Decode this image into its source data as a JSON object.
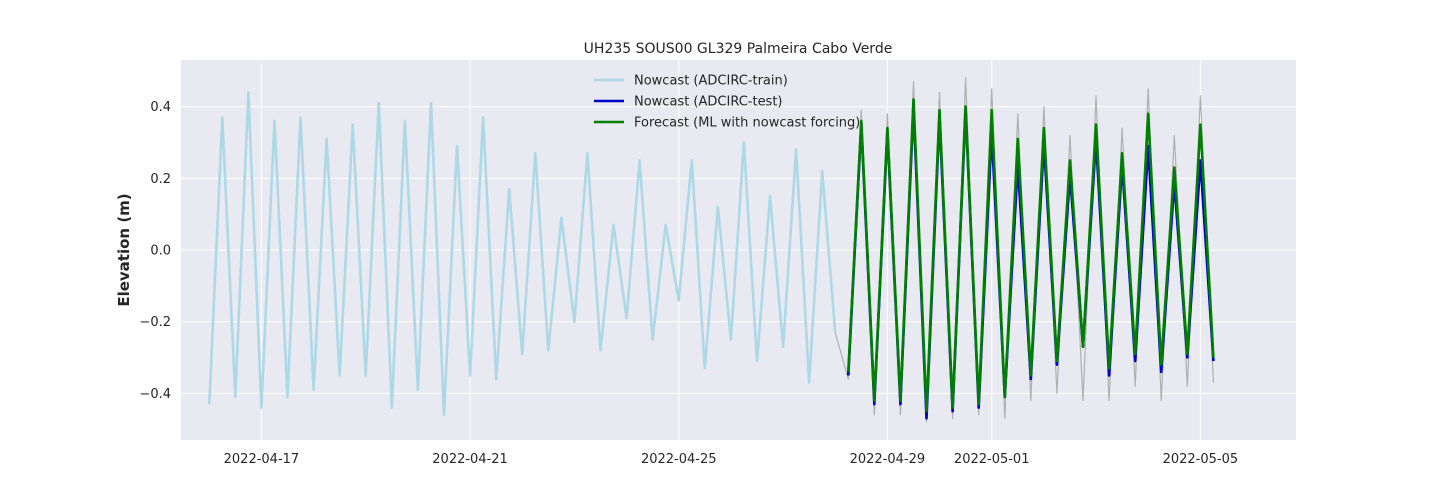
{
  "chart_data": {
    "type": "line",
    "title": "UH235 SOUS00 GL329 Palmeira Cabo Verde",
    "xlabel": "",
    "ylabel": "Elevation (m)",
    "xlim": [
      "2022-04-15T11:00",
      "2022-05-06T20:00"
    ],
    "ylim": [
      -0.53,
      0.53
    ],
    "x_ticks": [
      "2022-04-17",
      "2022-04-21",
      "2022-04-25",
      "2022-04-29",
      "2022-05-01",
      "2022-05-05"
    ],
    "y_ticks": [
      -0.4,
      -0.2,
      0.0,
      0.2,
      0.4
    ],
    "y_tick_labels": [
      "−0.4",
      "−0.2",
      "0.0",
      "0.2",
      "0.4"
    ],
    "grid": true,
    "legend_position": "top-center",
    "background": "#e9e9f1",
    "series": [
      {
        "name": "Nowcast (ADCIRC-train)",
        "color": "#add8e6",
        "start": "2022-04-16T00:00",
        "step_hours": 6,
        "values": [
          -0.43,
          0.37,
          -0.41,
          0.44,
          -0.44,
          0.36,
          -0.41,
          0.37,
          -0.39,
          0.31,
          -0.35,
          0.35,
          -0.35,
          0.41,
          -0.44,
          0.36,
          -0.39,
          0.41,
          -0.46,
          0.29,
          -0.35,
          0.37,
          -0.36,
          0.17,
          -0.29,
          0.27,
          -0.28,
          0.09,
          -0.2,
          0.27,
          -0.28,
          0.07,
          -0.19,
          0.25,
          -0.25,
          0.07,
          -0.14,
          0.25,
          -0.33,
          0.12,
          -0.25,
          0.3,
          -0.31,
          0.15,
          -0.27,
          0.28,
          -0.37,
          0.22,
          -0.23
        ]
      },
      {
        "name": "Nowcast (ADCIRC-test)",
        "color": "#0000cd",
        "start": "2022-04-28T06:00",
        "step_hours": 6,
        "values": [
          -0.35,
          0.35,
          -0.43,
          0.33,
          -0.43,
          0.4,
          -0.47,
          0.37,
          -0.45,
          0.39,
          -0.44,
          0.33,
          -0.41,
          0.24,
          -0.36,
          0.3,
          -0.32,
          0.21,
          -0.27,
          0.31,
          -0.35,
          0.24,
          -0.31,
          0.29,
          -0.34,
          0.19,
          -0.3,
          0.25,
          -0.31
        ]
      },
      {
        "name": "Forecast (ML with nowcast forcing)",
        "color": "#008000",
        "start": "2022-04-28T06:00",
        "step_hours": 6,
        "values": [
          -0.34,
          0.36,
          -0.42,
          0.34,
          -0.42,
          0.42,
          -0.45,
          0.39,
          -0.44,
          0.4,
          -0.43,
          0.39,
          -0.41,
          0.31,
          -0.35,
          0.34,
          -0.31,
          0.25,
          -0.27,
          0.35,
          -0.33,
          0.27,
          -0.29,
          0.38,
          -0.32,
          0.23,
          -0.29,
          0.35,
          -0.3
        ]
      },
      {
        "name": "",
        "color": "#b0b0b0",
        "start": "2022-04-28T00:00",
        "step_hours": 6,
        "values": [
          -0.23,
          -0.36,
          0.39,
          -0.46,
          0.38,
          -0.46,
          0.47,
          -0.48,
          0.44,
          -0.47,
          0.48,
          -0.46,
          0.45,
          -0.47,
          0.38,
          -0.42,
          0.4,
          -0.4,
          0.32,
          -0.42,
          0.43,
          -0.42,
          0.34,
          -0.38,
          0.45,
          -0.42,
          0.32,
          -0.38,
          0.43,
          -0.37
        ]
      }
    ]
  }
}
